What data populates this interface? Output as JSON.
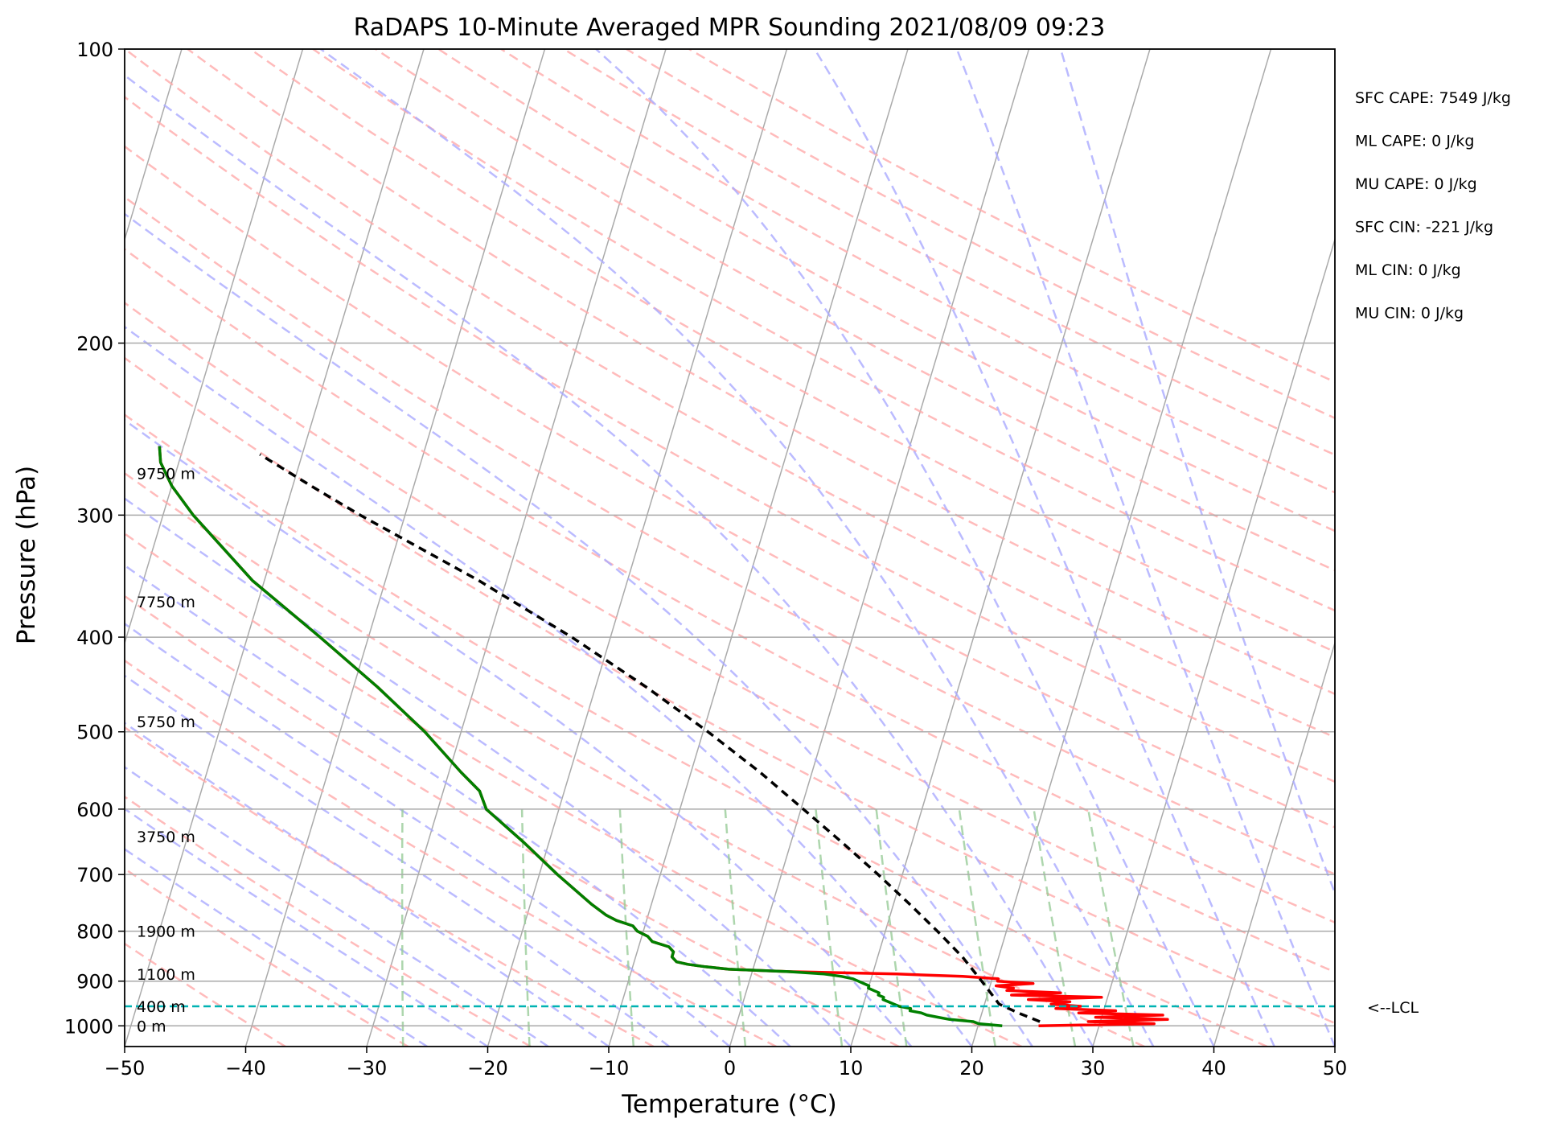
{
  "chart_data": {
    "type": "line",
    "title": "RaDAPS 10-Minute Averaged MPR Sounding 2021/08/09 09:23",
    "xlabel": "Temperature (°C)",
    "ylabel": "Pressure (hPa)",
    "xlim": [
      -50,
      50
    ],
    "ylim": [
      1050,
      100
    ],
    "y_scale": "log",
    "skew_t": true,
    "grid": true,
    "x_ticks": [
      "−50",
      "−40",
      "−30",
      "−20",
      "−10",
      "0",
      "10",
      "20",
      "30",
      "40",
      "50"
    ],
    "y_ticks": [
      "100",
      "200",
      "300",
      "400",
      "500",
      "600",
      "700",
      "800",
      "900",
      "1000"
    ],
    "x_tick_values": [
      -50,
      -40,
      -30,
      -20,
      -10,
      0,
      10,
      20,
      30,
      40,
      50
    ],
    "y_tick_values": [
      100,
      200,
      300,
      400,
      500,
      600,
      700,
      800,
      900,
      1000
    ],
    "series": [
      {
        "color": "#ff0000",
        "pressure": [
          1000,
          995,
          990,
          985,
          980,
          975,
          970,
          965,
          960,
          955,
          950,
          945,
          940,
          935,
          930,
          925,
          920,
          915,
          910,
          905,
          900,
          895,
          890,
          885,
          880,
          875,
          870,
          865,
          860,
          850,
          840,
          830,
          820,
          810,
          800,
          790,
          780,
          770,
          750,
          700,
          650,
          600,
          575,
          550,
          500,
          450,
          400,
          350,
          300,
          280,
          265,
          255
        ],
        "temperature": [
          25.0,
          34.5,
          29.0,
          35.5,
          29.5,
          35.0,
          28.0,
          31.0,
          26.0,
          28.0,
          25.5,
          27.0,
          23.5,
          29.5,
          22.0,
          26.0,
          21.5,
          22.0,
          20.5,
          23.5,
          20.5,
          20.5,
          17.5,
          12.0,
          3.0,
          -2.0,
          -4.0,
          -5.5,
          -6.5,
          -7.0,
          -7.0,
          -7.5,
          -9.0,
          -9.5,
          -10.5,
          -11.0,
          -12.5,
          -13.5,
          -15.0,
          -18.5,
          -22.0,
          -26.0,
          -27.0,
          -29.0,
          -33.0,
          -38.0,
          -44.0,
          -51.0,
          -57.5,
          -60.0,
          -61.5,
          -62.0
        ]
      },
      {
        "color": "#008000",
        "pressure": [
          1000,
          995,
          990,
          985,
          980,
          975,
          970,
          965,
          960,
          955,
          950,
          945,
          940,
          935,
          930,
          925,
          920,
          915,
          910,
          905,
          900,
          895,
          890,
          885,
          880,
          875,
          870,
          865,
          860,
          850,
          840,
          830,
          820,
          810,
          800,
          790,
          780,
          770,
          750,
          700,
          650,
          600,
          575,
          550,
          500,
          450,
          400,
          350,
          300,
          280,
          265,
          255
        ],
        "temperature": [
          22.0,
          20.0,
          19.5,
          17.5,
          16.5,
          15.5,
          15.0,
          14.0,
          14.0,
          13.0,
          12.5,
          12.0,
          11.5,
          11.5,
          11.0,
          11.0,
          10.5,
          10.0,
          10.0,
          9.5,
          9.0,
          8.5,
          7.5,
          6.0,
          3.0,
          -2.0,
          -4.0,
          -5.5,
          -6.5,
          -7.0,
          -7.0,
          -7.5,
          -9.0,
          -9.5,
          -10.5,
          -11.0,
          -12.5,
          -13.5,
          -15.0,
          -18.5,
          -22.0,
          -26.0,
          -27.0,
          -29.0,
          -33.0,
          -38.0,
          -44.0,
          -51.0,
          -57.5,
          -60.0,
          -61.5,
          -62.0
        ]
      },
      {
        "color": "#000000",
        "pressure": [
          990,
          970,
          950,
          900,
          850,
          800,
          750,
          700,
          650,
          600,
          550,
          500,
          450,
          400,
          350,
          300,
          280,
          260
        ],
        "temperature": [
          25.0,
          23.0,
          21.2,
          19.2,
          17.0,
          14.3,
          11.3,
          8.0,
          4.3,
          0.2,
          -4.3,
          -9.6,
          -15.8,
          -23.2,
          -32.3,
          -43.7,
          -48.5,
          -53.5
        ]
      }
    ],
    "height_labels": [
      {
        "text": "0 m",
        "pressure": 1000
      },
      {
        "text": "400 m",
        "pressure": 955
      },
      {
        "text": "1100 m",
        "pressure": 885
      },
      {
        "text": "1900 m",
        "pressure": 800
      },
      {
        "text": "3750 m",
        "pressure": 640
      },
      {
        "text": "5750 m",
        "pressure": 488
      },
      {
        "text": "7750 m",
        "pressure": 368
      },
      {
        "text": "9750 m",
        "pressure": 272
      }
    ],
    "lcl": {
      "pressure": 955,
      "label": "<--LCL",
      "color": "#00b3b3"
    },
    "background_lines": {
      "isotherm_color": "#aaaaaa",
      "dry_adiabat_color": "#ffaaaa",
      "moist_adiabat_color": "#aaaaff",
      "mixing_ratio_color": "#99cc99"
    },
    "annotations": [
      "SFC CAPE: 7549 J/kg",
      "ML CAPE: 0 J/kg",
      "MU CAPE: 0 J/kg",
      "SFC CIN: -221 J/kg",
      "ML CIN: 0 J/kg",
      "MU CIN: 0 J/kg"
    ]
  }
}
